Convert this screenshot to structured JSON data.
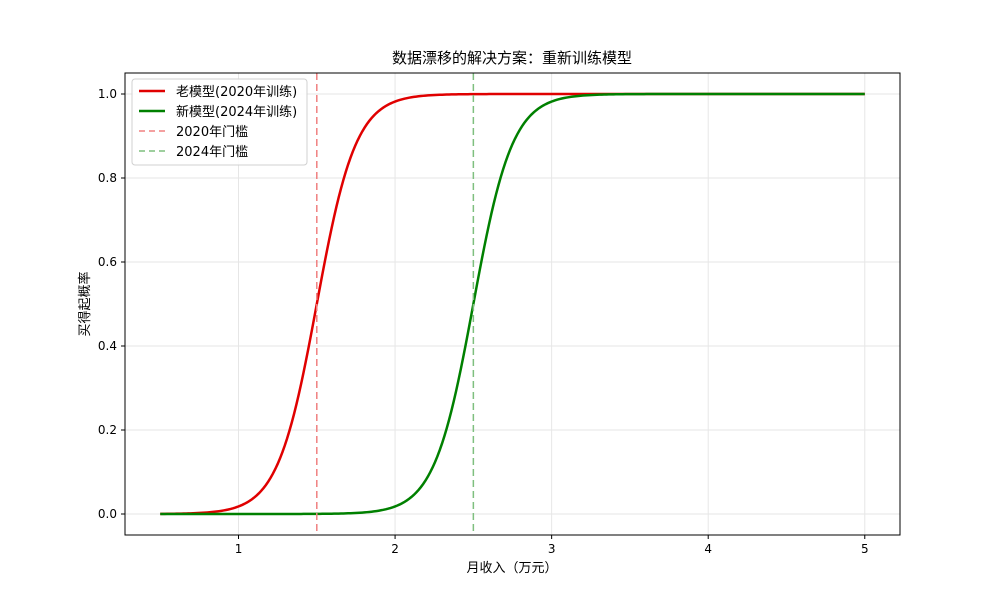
{
  "chart_data": {
    "type": "line",
    "title": "数据漂移的解决方案：重新训练模型",
    "xlabel": "月收入（万元）",
    "ylabel": "买得起概率",
    "xlim": [
      0.275,
      5.225
    ],
    "ylim": [
      -0.05,
      1.05
    ],
    "xticks": [
      1,
      2,
      3,
      4,
      5
    ],
    "xtick_labels": [
      "1",
      "2",
      "3",
      "4",
      "5"
    ],
    "yticks": [
      0.0,
      0.2,
      0.4,
      0.6,
      0.8,
      1.0
    ],
    "ytick_labels": [
      "0.0",
      "0.2",
      "0.4",
      "0.6",
      "0.8",
      "1.0"
    ],
    "grid": true,
    "legend_position": "upper left",
    "series": [
      {
        "name": "老模型(2020年训练)",
        "kind": "logistic",
        "center": 1.5,
        "steepness": 8,
        "x_range": [
          0.5,
          5
        ],
        "color": "#e00000",
        "style": "solid",
        "x": [
          0.5,
          1.0,
          1.25,
          1.5,
          1.75,
          2.0,
          2.5,
          3.0,
          5.0
        ],
        "y": [
          0.0003,
          0.018,
          0.119,
          0.5,
          0.881,
          0.982,
          0.9997,
          1.0,
          1.0
        ]
      },
      {
        "name": "新模型(2024年训练)",
        "kind": "logistic",
        "center": 2.5,
        "steepness": 8,
        "x_range": [
          0.5,
          5
        ],
        "color": "#008000",
        "style": "solid",
        "x": [
          0.5,
          1.5,
          2.0,
          2.25,
          2.5,
          2.75,
          3.0,
          3.5,
          5.0
        ],
        "y": [
          0.0,
          0.0003,
          0.018,
          0.119,
          0.5,
          0.881,
          0.982,
          0.9997,
          1.0
        ]
      },
      {
        "name": "2020年门槛",
        "kind": "vline",
        "x": 1.5,
        "color": "#f08080",
        "style": "dashed"
      },
      {
        "name": "2024年门槛",
        "kind": "vline",
        "x": 2.5,
        "color": "#7fbf7f",
        "style": "dashed"
      }
    ]
  }
}
